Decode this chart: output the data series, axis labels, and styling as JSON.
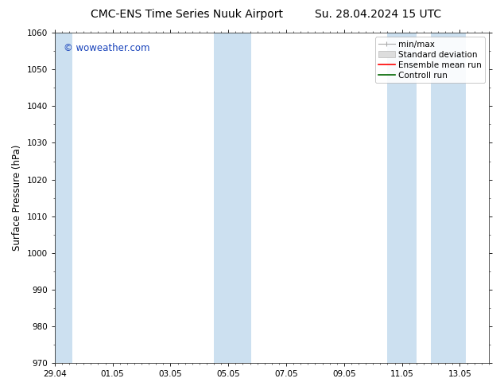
{
  "title_left": "CMC-ENS Time Series Nuuk Airport",
  "title_right": "Su. 28.04.2024 15 UTC",
  "ylabel": "Surface Pressure (hPa)",
  "ylim": [
    970,
    1060
  ],
  "yticks": [
    970,
    980,
    990,
    1000,
    1010,
    1020,
    1030,
    1040,
    1050,
    1060
  ],
  "xtick_labels": [
    "29.04",
    "01.05",
    "03.05",
    "05.05",
    "07.05",
    "09.05",
    "11.05",
    "13.05"
  ],
  "xtick_positions": [
    0,
    2,
    4,
    6,
    8,
    10,
    12,
    14
  ],
  "xlim": [
    0,
    15
  ],
  "shaded_regions": [
    {
      "start": -0.1,
      "end": 0.6
    },
    {
      "start": 5.5,
      "end": 6.8
    },
    {
      "start": 11.5,
      "end": 12.5
    },
    {
      "start": 13.0,
      "end": 14.2
    }
  ],
  "shaded_color": "#cce0f0",
  "background_color": "#ffffff",
  "watermark_text": "© woweather.com",
  "watermark_color": "#1a44bb",
  "legend_entries": [
    {
      "label": "min/max",
      "color": "#aaaaaa"
    },
    {
      "label": "Standard deviation",
      "color": "#cccccc"
    },
    {
      "label": "Ensemble mean run",
      "color": "#ff0000"
    },
    {
      "label": "Controll run",
      "color": "#006600"
    }
  ],
  "title_fontsize": 10,
  "tick_fontsize": 7.5,
  "legend_fontsize": 7.5,
  "ylabel_fontsize": 8.5,
  "watermark_fontsize": 8.5
}
